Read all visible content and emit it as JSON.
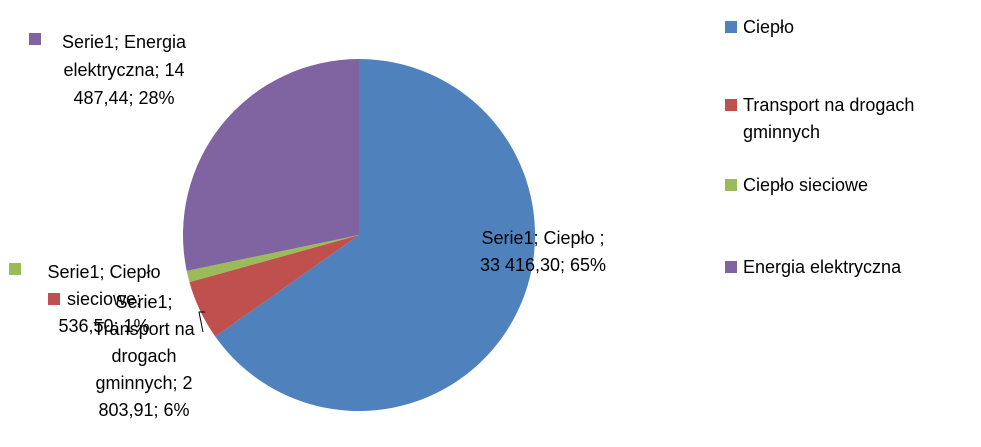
{
  "chart_data": {
    "type": "pie",
    "series": [
      {
        "name": "Serie1",
        "categories": [
          "Ciepło",
          "Transport na drogach gminnych",
          "Ciepło sieciowe",
          "Energia elektryczna"
        ],
        "values": [
          33416.3,
          2803.91,
          536.5,
          14487.44
        ],
        "percents": [
          65,
          6,
          1,
          28
        ]
      }
    ],
    "colors": [
      "#4F81BD",
      "#C0504D",
      "#9BBB59",
      "#8064A2"
    ],
    "data_labels": [
      [
        "Serie1; Ciepło ;",
        "33 416,30; 65%"
      ],
      [
        "Serie1;",
        "Transport na",
        "drogach",
        "gminnych; 2",
        "803,91; 6%"
      ],
      [
        "Serie1; Ciepło",
        "sieciowe;",
        "536,50; 1%"
      ],
      [
        "Serie1; Energia",
        "elektryczna; 14",
        "487,44; 28%"
      ]
    ],
    "legend": {
      "position": "right",
      "entries": [
        [
          "Ciepło"
        ],
        [
          "Transport na drogach",
          "gminnych"
        ],
        [
          "Ciepło sieciowe"
        ],
        [
          "Energia elektryczna"
        ]
      ]
    }
  }
}
